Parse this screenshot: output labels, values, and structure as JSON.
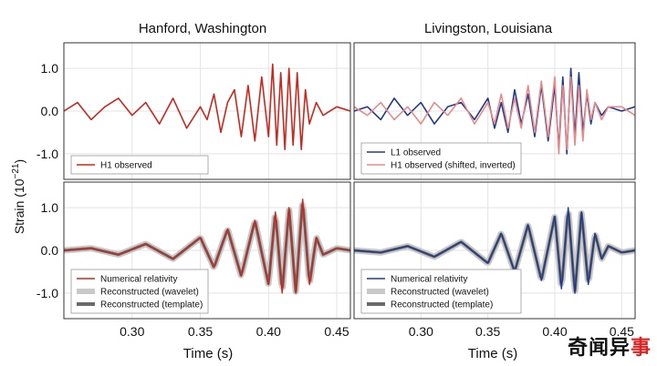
{
  "figure": {
    "top_titles": [
      "Hanford, Washington",
      "Livingston, Louisiana"
    ],
    "ylabel": "Strain (10",
    "ylabel_exp": "−21",
    "ylabel_close": ")",
    "xlabel": "Time (s)",
    "xticks": [
      "0.30",
      "0.35",
      "0.40",
      "0.45"
    ],
    "yticks": [
      "1.0",
      "0.0",
      "-1.0"
    ]
  },
  "colors": {
    "h1": "#c8281e",
    "l1": "#1f3a8a",
    "h1_shifted": "#e88a8a",
    "nr_red": "#c8281e",
    "wavelet": "#c9c9c9",
    "template": "#6a6a6a",
    "grid": "#e3e3e3"
  },
  "chart_data": [
    {
      "type": "line",
      "panel": "top-left",
      "xlim": [
        0.25,
        0.46
      ],
      "ylim": [
        -1.6,
        1.6
      ],
      "grid": true,
      "legend_position": "bottom-left",
      "series": [
        {
          "name": "H1 observed",
          "color": "#c8281e",
          "x": [
            0.25,
            0.26,
            0.27,
            0.28,
            0.29,
            0.3,
            0.31,
            0.32,
            0.33,
            0.34,
            0.35,
            0.355,
            0.36,
            0.365,
            0.37,
            0.375,
            0.38,
            0.385,
            0.39,
            0.395,
            0.4,
            0.403,
            0.406,
            0.409,
            0.412,
            0.415,
            0.418,
            0.421,
            0.424,
            0.427,
            0.43,
            0.435,
            0.44,
            0.45,
            0.46
          ],
          "y": [
            0.0,
            0.2,
            -0.2,
            0.1,
            0.3,
            -0.1,
            0.2,
            -0.3,
            0.3,
            -0.4,
            0.1,
            -0.2,
            0.4,
            -0.5,
            0.2,
            0.5,
            -0.6,
            0.6,
            -0.7,
            0.8,
            -0.6,
            1.1,
            -0.8,
            0.9,
            -0.9,
            1.0,
            -0.8,
            0.9,
            -0.9,
            0.5,
            -0.3,
            0.2,
            -0.1,
            0.1,
            0.0
          ]
        }
      ]
    },
    {
      "type": "line",
      "panel": "top-right",
      "xlim": [
        0.25,
        0.46
      ],
      "ylim": [
        -1.6,
        1.6
      ],
      "grid": true,
      "legend_position": "bottom-left",
      "series": [
        {
          "name": "L1 observed",
          "color": "#1f3a8a",
          "x": [
            0.25,
            0.26,
            0.27,
            0.28,
            0.29,
            0.3,
            0.31,
            0.32,
            0.33,
            0.34,
            0.35,
            0.355,
            0.36,
            0.365,
            0.37,
            0.375,
            0.38,
            0.385,
            0.39,
            0.395,
            0.4,
            0.403,
            0.406,
            0.409,
            0.412,
            0.415,
            0.418,
            0.421,
            0.424,
            0.427,
            0.43,
            0.435,
            0.44,
            0.45,
            0.46
          ],
          "y": [
            0.0,
            0.1,
            -0.2,
            0.3,
            -0.1,
            0.2,
            -0.3,
            0.1,
            0.2,
            -0.2,
            0.3,
            -0.4,
            0.2,
            -0.5,
            0.5,
            -0.3,
            0.4,
            -0.6,
            0.6,
            -0.7,
            0.6,
            -0.9,
            0.8,
            -1.0,
            1.0,
            -0.6,
            0.9,
            -0.5,
            0.4,
            -0.3,
            0.2,
            -0.1,
            0.1,
            0.0,
            0.1
          ]
        },
        {
          "name": "H1 observed (shifted, inverted)",
          "color": "#e88a8a",
          "x": [
            0.25,
            0.26,
            0.27,
            0.28,
            0.29,
            0.3,
            0.31,
            0.32,
            0.33,
            0.34,
            0.35,
            0.355,
            0.36,
            0.365,
            0.37,
            0.375,
            0.38,
            0.385,
            0.39,
            0.395,
            0.4,
            0.403,
            0.406,
            0.409,
            0.412,
            0.415,
            0.418,
            0.421,
            0.424,
            0.427,
            0.43,
            0.435,
            0.44,
            0.45,
            0.46
          ],
          "y": [
            0.1,
            -0.1,
            0.2,
            -0.2,
            0.1,
            -0.3,
            0.2,
            -0.1,
            0.3,
            -0.3,
            0.2,
            -0.3,
            0.4,
            -0.4,
            0.3,
            -0.4,
            0.6,
            -0.5,
            0.7,
            -0.6,
            0.8,
            -1.0,
            0.6,
            -0.9,
            0.8,
            -0.8,
            0.6,
            -0.7,
            0.5,
            -0.2,
            0.2,
            -0.2,
            0.1,
            0.1,
            -0.1
          ]
        }
      ]
    },
    {
      "type": "line",
      "panel": "bottom-left",
      "xlim": [
        0.25,
        0.46
      ],
      "ylim": [
        -1.6,
        1.6
      ],
      "grid": true,
      "legend_position": "bottom-left",
      "series": [
        {
          "name": "Numerical relativity",
          "color": "#c8281e",
          "x": [
            0.25,
            0.27,
            0.29,
            0.31,
            0.33,
            0.35,
            0.36,
            0.37,
            0.38,
            0.39,
            0.4,
            0.405,
            0.41,
            0.415,
            0.42,
            0.425,
            0.43,
            0.435,
            0.44,
            0.45,
            0.46
          ],
          "y": [
            0.0,
            0.05,
            -0.1,
            0.15,
            -0.2,
            0.3,
            -0.4,
            0.5,
            -0.6,
            0.7,
            -0.8,
            0.9,
            -1.0,
            1.0,
            -1.0,
            1.2,
            -0.8,
            0.3,
            -0.1,
            0.05,
            0.0
          ]
        },
        {
          "name": "Reconstructed (wavelet)",
          "color": "#c9c9c9"
        },
        {
          "name": "Reconstructed (template)",
          "color": "#6a6a6a"
        }
      ]
    },
    {
      "type": "line",
      "panel": "bottom-right",
      "xlim": [
        0.25,
        0.46
      ],
      "ylim": [
        -1.6,
        1.6
      ],
      "grid": true,
      "legend_position": "bottom-left",
      "series": [
        {
          "name": "Numerical relativity",
          "color": "#1f3a8a",
          "x": [
            0.25,
            0.27,
            0.29,
            0.31,
            0.33,
            0.35,
            0.36,
            0.37,
            0.38,
            0.39,
            0.4,
            0.405,
            0.41,
            0.415,
            0.42,
            0.425,
            0.43,
            0.435,
            0.44,
            0.45,
            0.46
          ],
          "y": [
            0.0,
            -0.05,
            0.1,
            -0.15,
            0.2,
            -0.3,
            0.4,
            -0.5,
            0.6,
            -0.7,
            0.8,
            -0.9,
            1.0,
            -1.0,
            0.9,
            -0.8,
            0.4,
            -0.2,
            0.1,
            -0.05,
            0.0
          ]
        },
        {
          "name": "Reconstructed (wavelet)",
          "color": "#c9c9c9"
        },
        {
          "name": "Reconstructed (template)",
          "color": "#6a6a6a"
        }
      ]
    }
  ],
  "watermark": {
    "part1": "奇闻异",
    "part2": "事"
  }
}
